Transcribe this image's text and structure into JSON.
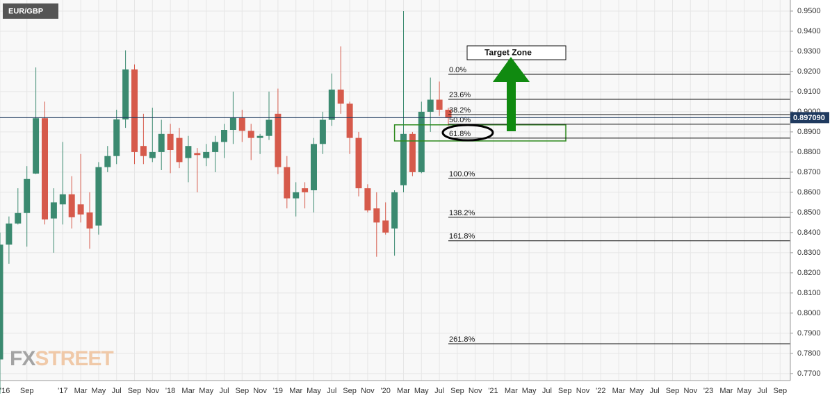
{
  "chart_data": {
    "type": "candlestick",
    "title": "EUR/GBP",
    "watermark": [
      "FX",
      "STREET"
    ],
    "categories": [
      "'16",
      null,
      null,
      "Sep",
      null,
      null,
      null,
      "'17",
      null,
      "Mar",
      null,
      "May",
      null,
      "Jul",
      null,
      "Sep",
      null,
      "Nov",
      null,
      "'18",
      null,
      "Mar",
      null,
      "May",
      null,
      "Jul",
      null,
      "Sep",
      null,
      "Nov",
      null,
      "'19",
      null,
      "Mar",
      null,
      "May",
      null,
      "Jul",
      null,
      "Sep",
      null,
      "Nov",
      null,
      "'20",
      null,
      "Mar",
      null,
      "May",
      null,
      "Jul",
      null,
      "Sep",
      null,
      "Nov",
      null,
      "'21",
      null,
      "Mar",
      null,
      "May",
      null,
      "Jul",
      null,
      "Sep",
      null,
      "Nov",
      null,
      "'22",
      null,
      "Mar",
      null,
      "May",
      null,
      "Jul",
      null,
      "Sep",
      null,
      "Nov",
      null,
      "'23",
      null,
      "Mar",
      null,
      "May",
      null,
      "Jul",
      null,
      "Sep"
    ],
    "open": [
      0.777,
      0.834,
      0.8445,
      0.8497,
      0.8693,
      0.8968,
      0.847,
      0.854,
      0.859,
      0.854,
      0.85,
      0.8435,
      0.8725,
      0.878,
      0.8962,
      0.921,
      0.883,
      0.877,
      0.88,
      0.889,
      0.887,
      0.877,
      0.8795,
      0.877,
      0.88,
      0.885,
      0.891,
      0.897,
      0.8905,
      0.887,
      0.888,
      0.899,
      0.8725,
      0.857,
      0.862,
      0.861,
      0.884,
      0.896,
      0.911,
      0.904,
      0.887,
      0.862,
      0.852,
      0.846,
      0.842,
      0.8635,
      0.889,
      0.87,
      0.9,
      0.906,
      0.901,
      null,
      null,
      null,
      null,
      null,
      null,
      null,
      null,
      null,
      null,
      null,
      null,
      null,
      null,
      null,
      null,
      null,
      null,
      null,
      null,
      null,
      null,
      null,
      null,
      null,
      null,
      null,
      null,
      null,
      null,
      null,
      null,
      null,
      null,
      null,
      null,
      null
    ],
    "high": [
      0.84,
      0.848,
      0.862,
      0.873,
      0.922,
      0.905,
      0.862,
      0.885,
      0.868,
      0.879,
      0.86,
      0.875,
      0.883,
      0.901,
      0.9305,
      0.9235,
      0.899,
      0.902,
      0.896,
      0.894,
      0.892,
      0.888,
      0.882,
      0.884,
      0.888,
      0.894,
      0.91,
      0.901,
      0.894,
      0.889,
      0.91,
      0.9115,
      0.878,
      0.865,
      0.865,
      0.887,
      0.9,
      0.919,
      0.9325,
      0.905,
      0.89,
      0.864,
      0.86,
      0.855,
      0.861,
      0.95,
      0.89,
      0.905,
      0.917,
      0.915,
      0.902,
      null,
      null,
      null,
      null,
      null,
      null,
      null,
      null,
      null,
      null,
      null,
      null,
      null,
      null,
      null,
      null,
      null,
      null,
      null,
      null,
      null,
      null,
      null,
      null,
      null,
      null,
      null,
      null,
      null,
      null,
      null,
      null,
      null,
      null,
      null,
      null,
      null
    ],
    "low": [
      0.76,
      0.8245,
      0.844,
      0.833,
      0.869,
      0.844,
      0.83,
      0.844,
      0.842,
      0.845,
      0.832,
      0.839,
      0.87,
      0.874,
      0.892,
      0.874,
      0.874,
      0.875,
      0.871,
      0.8695,
      0.872,
      0.865,
      0.86,
      0.873,
      0.87,
      0.877,
      0.884,
      0.885,
      0.876,
      0.879,
      0.886,
      0.869,
      0.852,
      0.848,
      0.852,
      0.85,
      0.879,
      0.893,
      0.899,
      0.879,
      0.858,
      0.85,
      0.828,
      0.839,
      0.8285,
      0.86,
      0.868,
      0.8695,
      0.89,
      0.898,
      0.893,
      null,
      null,
      null,
      null,
      null,
      null,
      null,
      null,
      null,
      null,
      null,
      null,
      null,
      null,
      null,
      null,
      null,
      null,
      null,
      null,
      null,
      null,
      null,
      null,
      null,
      null,
      null,
      null,
      null,
      null,
      null,
      null,
      null,
      null,
      null,
      null,
      null
    ],
    "close": [
      0.834,
      0.8445,
      0.8497,
      0.8666,
      0.8968,
      0.8465,
      0.855,
      0.859,
      0.8476,
      0.849,
      0.842,
      0.8725,
      0.878,
      0.8962,
      0.921,
      0.88,
      0.878,
      0.88,
      0.889,
      0.881,
      0.875,
      0.883,
      0.8785,
      0.88,
      0.885,
      0.891,
      0.897,
      0.8905,
      0.887,
      0.888,
      0.896,
      0.8725,
      0.857,
      0.86,
      0.86,
      0.884,
      0.896,
      0.911,
      0.904,
      0.887,
      0.862,
      0.851,
      0.845,
      0.84,
      0.86,
      0.889,
      0.87,
      0.9,
      0.906,
      0.901,
      0.8971,
      null,
      null,
      null,
      null,
      null,
      null,
      null,
      null,
      null,
      null,
      null,
      null,
      null,
      null,
      null,
      null,
      null,
      null,
      null,
      null,
      null,
      null,
      null,
      null,
      null,
      null,
      null,
      null,
      null,
      null,
      null,
      null,
      null,
      null,
      null,
      null,
      null
    ],
    "up_color": "#3b8a70",
    "down_color": "#d65a4b",
    "ylim": [
      0.7665,
      0.9555
    ],
    "yticks": [
      {
        "value": 0.95,
        "label": "0.9500"
      },
      {
        "value": 0.94,
        "label": "0.9400"
      },
      {
        "value": 0.93,
        "label": "0.9300"
      },
      {
        "value": 0.92,
        "label": "0.9200"
      },
      {
        "value": 0.91,
        "label": "0.9100"
      },
      {
        "value": 0.9,
        "label": "0.9000"
      },
      {
        "value": 0.89,
        "label": "0.8900"
      },
      {
        "value": 0.88,
        "label": "0.8800"
      },
      {
        "value": 0.87,
        "label": "0.8700"
      },
      {
        "value": 0.86,
        "label": "0.8600"
      },
      {
        "value": 0.85,
        "label": "0.8500"
      },
      {
        "value": 0.84,
        "label": "0.8400"
      },
      {
        "value": 0.83,
        "label": "0.8300"
      },
      {
        "value": 0.82,
        "label": "0.8200"
      },
      {
        "value": 0.81,
        "label": "0.8100"
      },
      {
        "value": 0.8,
        "label": "0.8000"
      },
      {
        "value": 0.79,
        "label": "0.7900"
      },
      {
        "value": 0.78,
        "label": "0.7800"
      },
      {
        "value": 0.77,
        "label": "0.7700"
      }
    ],
    "grid": true,
    "last_price": {
      "value": 0.89709,
      "label": "0.897090"
    },
    "fib_levels": [
      {
        "label": "0.0%",
        "value": 0.9186
      },
      {
        "label": "23.6%",
        "value": 0.9062
      },
      {
        "label": "38.2%",
        "value": 0.8986
      },
      {
        "label": "50.0%",
        "value": 0.8938
      },
      {
        "label": "61.8%",
        "value": 0.8869
      },
      {
        "label": "100.0%",
        "value": 0.8669
      },
      {
        "label": "138.2%",
        "value": 0.8476
      },
      {
        "label": "161.8%",
        "value": 0.8359
      },
      {
        "label": "261.8%",
        "value": 0.7848
      }
    ],
    "zone": [
      0.8855,
      0.8935
    ],
    "zone_color": "#2e8b1e",
    "annotation": "Target Zone"
  }
}
